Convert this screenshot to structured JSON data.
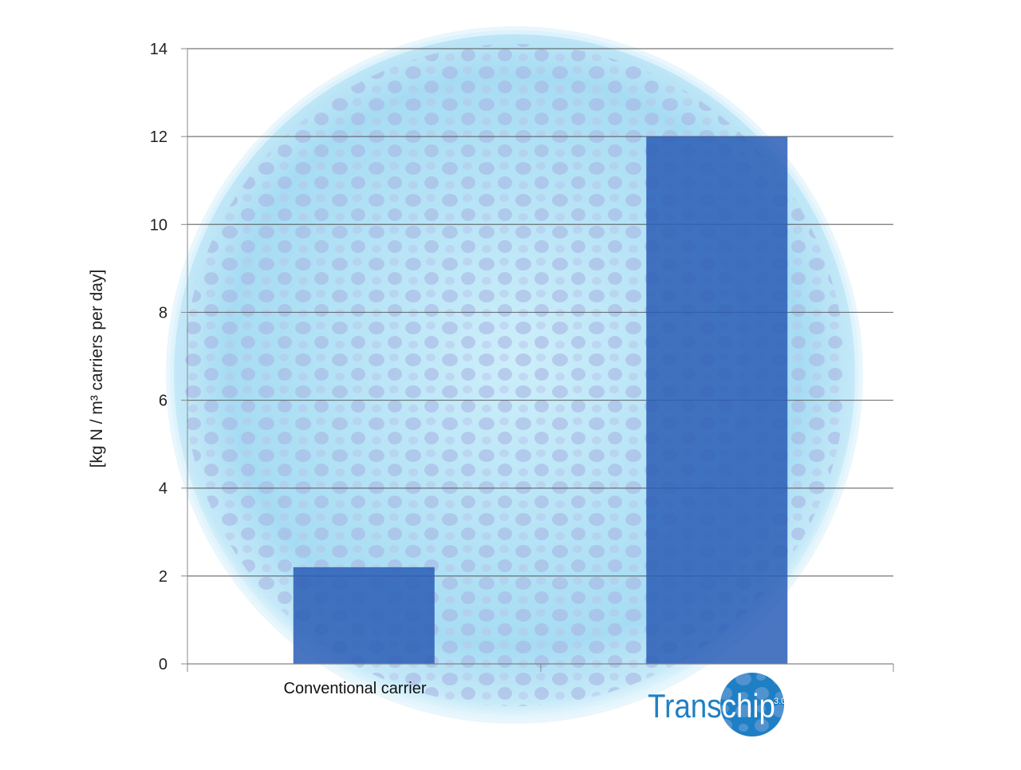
{
  "chart_data": {
    "type": "bar",
    "y_label": "[kg N / m³ carriers per day]",
    "categories": [
      "Conventional carrier",
      "Transchip"
    ],
    "logo_version": "3.0",
    "values": [
      2.2,
      12
    ],
    "color": "#2a5db5",
    "ylim": [
      0,
      14
    ],
    "yticks": [
      0,
      2,
      4,
      6,
      8,
      10,
      12,
      14
    ],
    "grid": true
  }
}
